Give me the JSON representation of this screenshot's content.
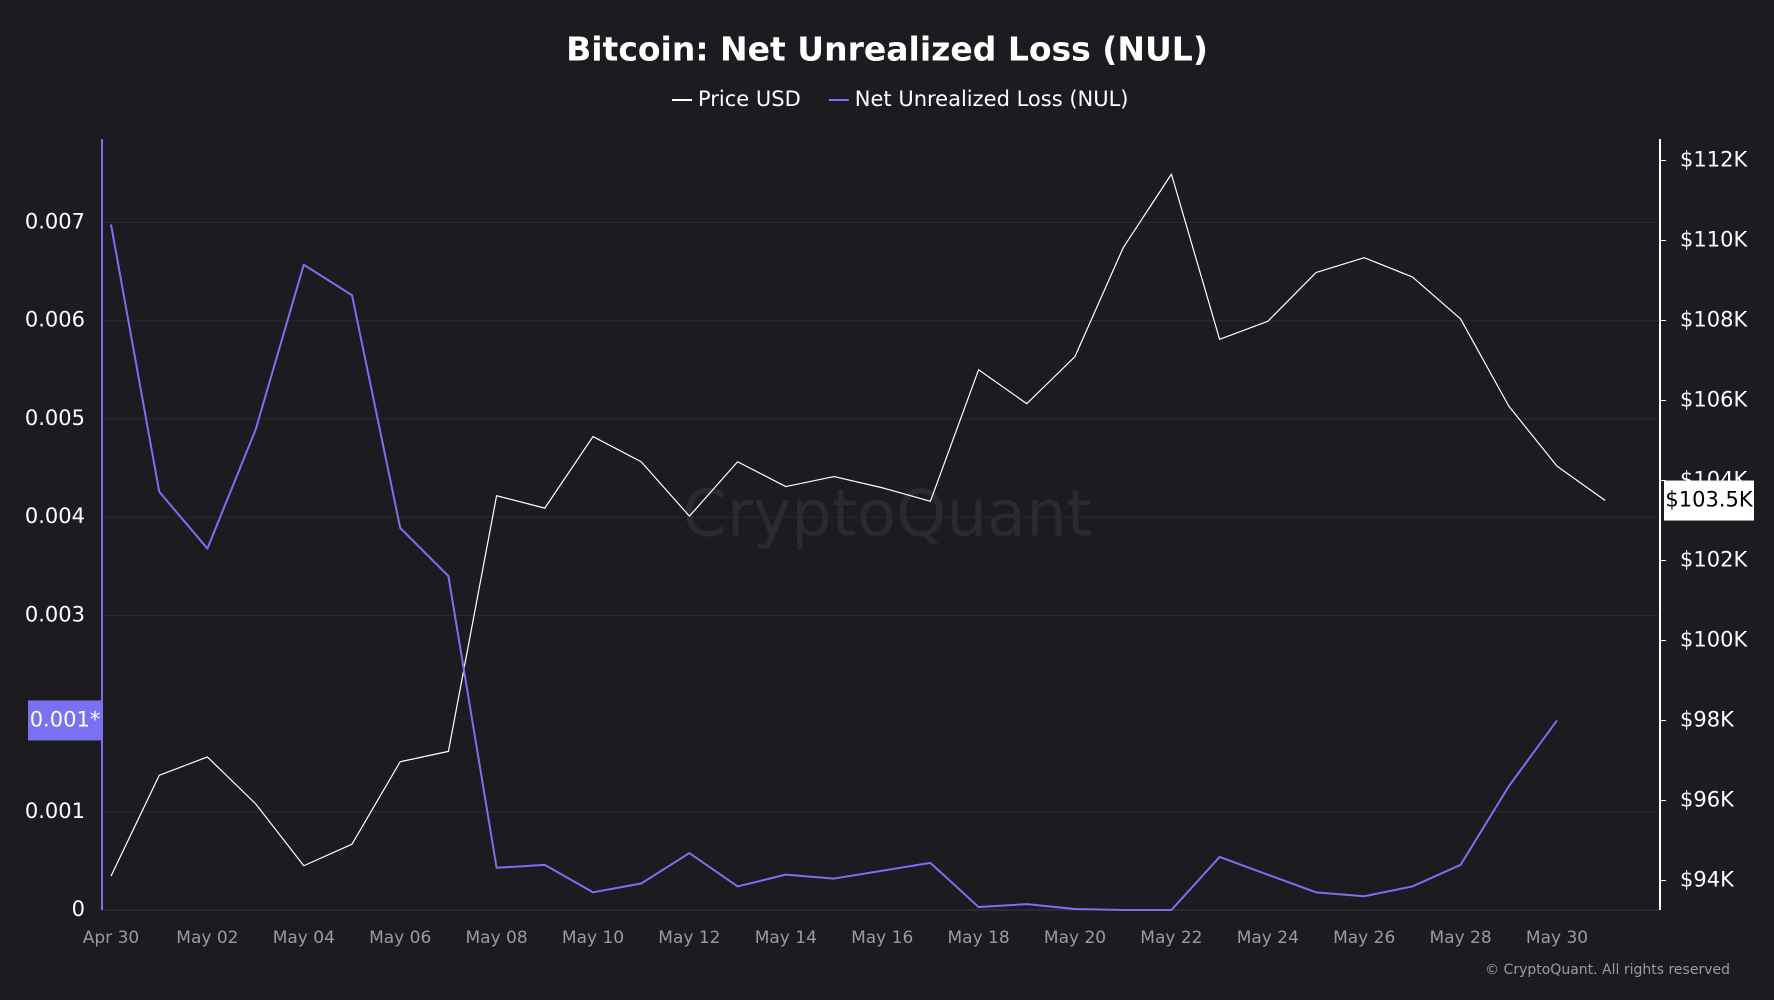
{
  "chart_data": {
    "type": "line",
    "title": "Bitcoin: Net Unrealized Loss (NUL)",
    "watermark": "CryptoQuant",
    "footer": "© CryptoQuant. All rights reserved",
    "categories": [
      "Apr 30",
      null,
      "May 02",
      null,
      "May 04",
      null,
      "May 06",
      null,
      "May 08",
      null,
      "May 10",
      null,
      "May 12",
      null,
      "May 14",
      null,
      "May 16",
      null,
      "May 18",
      null,
      "May 20",
      null,
      "May 22",
      null,
      "May 24",
      null,
      "May 26",
      null,
      "May 28",
      null,
      "May 30",
      null
    ],
    "series": [
      {
        "name": "Price USD",
        "color": "#ffffff",
        "axis": "y2",
        "last_label": "$103.5K",
        "values": [
          94110,
          96630,
          97090,
          95920,
          94370,
          94910,
          96970,
          97230,
          103620,
          103310,
          105100,
          104470,
          103110,
          104470,
          103850,
          104100,
          103820,
          103480,
          106770,
          105920,
          107100,
          109820,
          111660,
          107530,
          107980,
          109200,
          109570,
          109090,
          108040,
          105860,
          104360,
          103500
        ]
      },
      {
        "name": "Net Unrealized Loss (NUL)",
        "color": "#7b70f2",
        "last_label": "0.001*",
        "values": [
          0.00698,
          0.00426,
          0.00368,
          0.00489,
          0.00657,
          0.00626,
          0.00389,
          0.0034,
          0.00043,
          0.00046,
          0.00018,
          0.00027,
          0.00058,
          0.00024,
          0.00036,
          0.00032,
          0.0004,
          0.00048,
          3e-05,
          6e-05,
          1e-05,
          0,
          0,
          0.00054,
          0.00036,
          0.00018,
          0.00014,
          0.00024,
          0.00046,
          0.00126,
          0.00193,
          null
        ]
      }
    ],
    "ylim": [
      0,
      0.00785
    ],
    "yticks": [
      0,
      0.001,
      0.003,
      0.004,
      0.005,
      0.006,
      0.007
    ],
    "y2lim": [
      93264,
      112538
    ],
    "y2ticks": [
      {
        "value": 94000,
        "label": "$94K"
      },
      {
        "value": 96000,
        "label": "$96K"
      },
      {
        "value": 98000,
        "label": "$98K"
      },
      {
        "value": 100000,
        "label": "$100K"
      },
      {
        "value": 102000,
        "label": "$102K"
      },
      {
        "value": 104000,
        "label": "$104K"
      },
      {
        "value": 106000,
        "label": "$106K"
      },
      {
        "value": 108000,
        "label": "$108K"
      },
      {
        "value": 110000,
        "label": "$110K"
      },
      {
        "value": 112000,
        "label": "$112K"
      }
    ],
    "grid": true,
    "legend": "top"
  }
}
